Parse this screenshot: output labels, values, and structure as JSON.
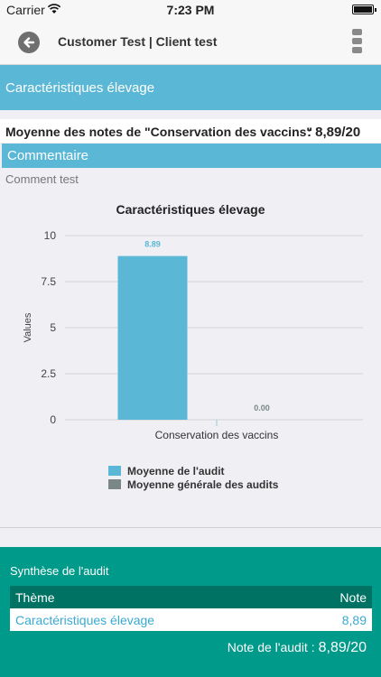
{
  "status_bar": {
    "carrier": "Carrier",
    "time": "7:23 PM"
  },
  "nav": {
    "title": "Customer Test | Client test"
  },
  "section": {
    "title": "Caractéristiques élevage"
  },
  "average": {
    "label": "Moyenne des notes de \"Conservation des vaccins\"",
    "value": ": 8,89/20"
  },
  "comment": {
    "header": "Commentaire",
    "text": "Comment test"
  },
  "chart_data": {
    "type": "bar",
    "title": "Caractéristiques élevage",
    "ylabel": "Values",
    "xlabel": "",
    "ylim": [
      0,
      10
    ],
    "yticks": [
      "0",
      "2.5",
      "5",
      "7.5",
      "10"
    ],
    "categories": [
      "Conservation des vaccins"
    ],
    "series": [
      {
        "name": "Moyenne de l'audit",
        "values": [
          8.89
        ],
        "labels": [
          "8.89"
        ],
        "color": "#5ab7d5"
      },
      {
        "name": "Moyenne générale des audits",
        "values": [
          0
        ],
        "labels": [
          "0.00"
        ],
        "color": "#7a8785"
      }
    ],
    "grid": true,
    "legend": "bottom"
  },
  "synthesis": {
    "title": "Synthèse de l'audit",
    "header": {
      "theme": "Thème",
      "note": "Note"
    },
    "rows": [
      {
        "theme": "Caractéristiques élevage",
        "note": "8,89"
      }
    ],
    "total_label": "Note de l'audit :",
    "total_value": "8,89/20"
  },
  "colors": {
    "accent": "#5ab7d5",
    "synthesis_bg": "#009a8a",
    "synthesis_header": "#007263"
  }
}
